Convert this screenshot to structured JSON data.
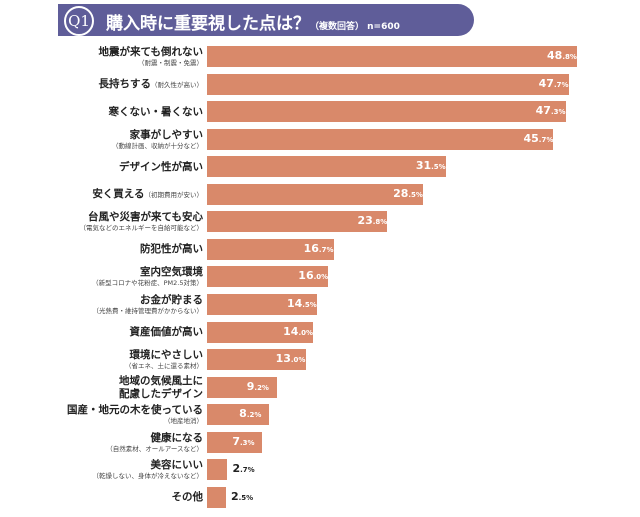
{
  "title": {
    "badge": "Q1",
    "text": "購入時に重要視した点は？",
    "sub": "（複数回答） n=600"
  },
  "chart_data": {
    "type": "bar",
    "orientation": "horizontal",
    "unit": "%",
    "xlim": [
      0,
      50
    ],
    "categories": [
      {
        "main": "地震が来ても倒れない",
        "sub": "（耐震・制震・免震）",
        "inline": false
      },
      {
        "main": "長持ちする",
        "sub": "（耐久性が高い）",
        "inline": true
      },
      {
        "main": "寒くない・暑くない",
        "sub": "",
        "inline": false
      },
      {
        "main": "家事がしやすい",
        "sub": "（動線計画、収納が十分など）",
        "inline": false
      },
      {
        "main": "デザイン性が高い",
        "sub": "",
        "inline": false
      },
      {
        "main": "安く買える",
        "sub": "（初期費用が安い）",
        "inline": true
      },
      {
        "main": "台風や災害が来ても安心",
        "sub": "（電気などのエネルギーを自給可能など）",
        "inline": false
      },
      {
        "main": "防犯性が高い",
        "sub": "",
        "inline": false
      },
      {
        "main": "室内空気環境",
        "sub": "（新型コロナや花粉症、PM2.5対策）",
        "inline": false
      },
      {
        "main": "お金が貯まる",
        "sub": "（光熱費・維持管理費がかからない）",
        "inline": false
      },
      {
        "main": "資産価値が高い",
        "sub": "",
        "inline": false
      },
      {
        "main": "環境にやさしい",
        "sub": "（省エネ、土に還る素材）",
        "inline": false
      },
      {
        "main": "地域の気候風土に",
        "sub": "配慮したデザイン",
        "inline": false,
        "twoLineBold": true
      },
      {
        "main": "国産・地元の木を使っている",
        "sub": "（地産地消）",
        "inline": false
      },
      {
        "main": "健康になる",
        "sub": "（自然素材、オールアースなど）",
        "inline": false
      },
      {
        "main": "美容にいい",
        "sub": "（乾燥しない、身体が冷えないなど）",
        "inline": false
      },
      {
        "main": "その他",
        "sub": "",
        "inline": false
      }
    ],
    "values": [
      48.8,
      47.7,
      47.3,
      45.7,
      31.5,
      28.5,
      23.8,
      16.7,
      16.0,
      14.5,
      14.0,
      13.0,
      9.2,
      8.2,
      7.3,
      2.7,
      2.5
    ],
    "bar_color": "#d9896a"
  }
}
